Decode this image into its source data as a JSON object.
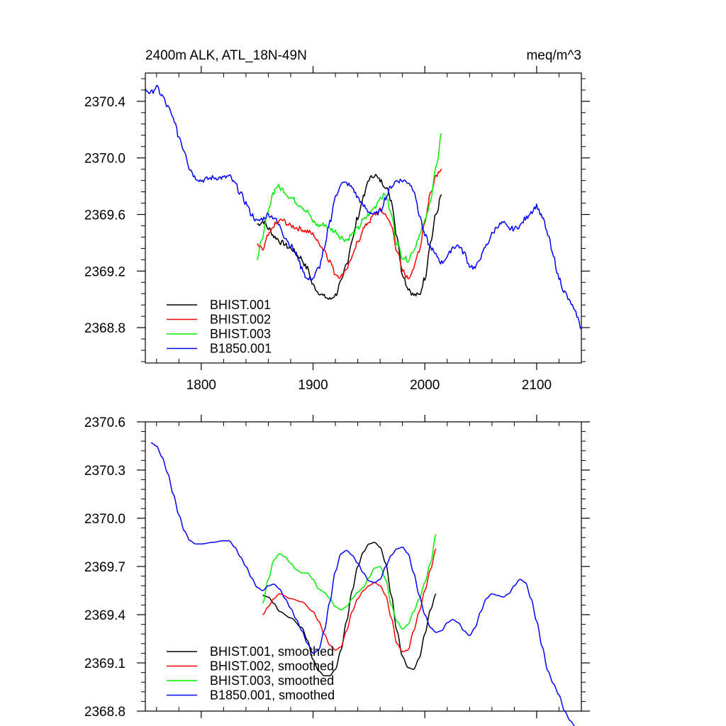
{
  "chart_data": [
    {
      "type": "line",
      "title_left": "2400m ALK, ATL_18N-49N",
      "title_right": "meq/m^3",
      "xlabel": "",
      "ylabel": "",
      "xlim": [
        1750,
        2140
      ],
      "ylim": [
        2368.55,
        2370.6
      ],
      "xticks": [
        1800,
        1900,
        2000,
        2100
      ],
      "xtick_labels": [
        "1800",
        "1900",
        "2000",
        "2100"
      ],
      "yticks": [
        2368.8,
        2369.2,
        2369.6,
        2370.0,
        2370.4
      ],
      "ytick_labels": [
        "2368.8",
        "2369.2",
        "2369.6",
        "2370.0",
        "2370.4"
      ],
      "legend_position": "bottom-left",
      "series": [
        {
          "name": "BHIST.001",
          "color": "#000000",
          "noise": 0.018,
          "x": [
            1850,
            1856,
            1860,
            1866,
            1872,
            1880,
            1888,
            1895,
            1900,
            1905,
            1910,
            1915,
            1920,
            1925,
            1930,
            1935,
            1940,
            1945,
            1950,
            1955,
            1960,
            1965,
            1970,
            1975,
            1980,
            1985,
            1990,
            1995,
            2000,
            2005,
            2010,
            2015
          ],
          "y": [
            2369.53,
            2369.55,
            2369.5,
            2369.44,
            2369.4,
            2369.36,
            2369.3,
            2369.22,
            2369.1,
            2369.05,
            2369.02,
            2369.0,
            2369.03,
            2369.12,
            2369.25,
            2369.42,
            2369.58,
            2369.72,
            2369.85,
            2369.88,
            2369.84,
            2369.8,
            2369.7,
            2369.45,
            2369.18,
            2369.08,
            2369.03,
            2369.03,
            2369.15,
            2369.4,
            2369.6,
            2369.74
          ]
        },
        {
          "name": "BHIST.002",
          "color": "#ff0000",
          "noise": 0.018,
          "x": [
            1850,
            1855,
            1860,
            1866,
            1872,
            1880,
            1888,
            1895,
            1900,
            1905,
            1910,
            1915,
            1920,
            1925,
            1930,
            1935,
            1940,
            1945,
            1950,
            1955,
            1960,
            1965,
            1970,
            1975,
            1980,
            1985,
            1990,
            1995,
            2000,
            2005,
            2010,
            2015
          ],
          "y": [
            2369.38,
            2369.35,
            2369.45,
            2369.53,
            2369.56,
            2369.52,
            2369.5,
            2369.48,
            2369.46,
            2369.4,
            2369.35,
            2369.27,
            2369.18,
            2369.16,
            2369.22,
            2369.3,
            2369.4,
            2369.5,
            2369.55,
            2369.6,
            2369.63,
            2369.6,
            2369.52,
            2369.35,
            2369.2,
            2369.15,
            2369.22,
            2369.35,
            2369.55,
            2369.75,
            2369.88,
            2369.93
          ]
        },
        {
          "name": "BHIST.003",
          "color": "#00ee00",
          "noise": 0.018,
          "x": [
            1850,
            1855,
            1860,
            1864,
            1868,
            1872,
            1880,
            1888,
            1895,
            1900,
            1905,
            1910,
            1915,
            1920,
            1925,
            1930,
            1935,
            1940,
            1945,
            1950,
            1955,
            1960,
            1965,
            1970,
            1975,
            1980,
            1985,
            1990,
            1995,
            2000,
            2005,
            2010,
            2015
          ],
          "y": [
            2369.28,
            2369.45,
            2369.62,
            2369.75,
            2369.8,
            2369.78,
            2369.72,
            2369.67,
            2369.62,
            2369.55,
            2369.52,
            2369.53,
            2369.5,
            2369.48,
            2369.44,
            2369.42,
            2369.46,
            2369.5,
            2369.56,
            2369.6,
            2369.65,
            2369.72,
            2369.74,
            2369.6,
            2369.4,
            2369.3,
            2369.28,
            2369.35,
            2369.45,
            2369.55,
            2369.7,
            2369.92,
            2370.18
          ]
        },
        {
          "name": "B1850.001",
          "color": "#0000ff",
          "noise": 0.018,
          "x": [
            1750,
            1755,
            1760,
            1765,
            1770,
            1775,
            1780,
            1785,
            1790,
            1795,
            1800,
            1805,
            1810,
            1815,
            1820,
            1825,
            1830,
            1835,
            1840,
            1845,
            1850,
            1855,
            1860,
            1865,
            1870,
            1875,
            1880,
            1885,
            1890,
            1895,
            1900,
            1905,
            1910,
            1915,
            1920,
            1925,
            1930,
            1935,
            1940,
            1945,
            1950,
            1955,
            1960,
            1965,
            1970,
            1975,
            1980,
            1985,
            1990,
            1995,
            2000,
            2005,
            2010,
            2015,
            2020,
            2025,
            2030,
            2035,
            2040,
            2045,
            2050,
            2055,
            2060,
            2065,
            2070,
            2075,
            2080,
            2085,
            2090,
            2095,
            2100,
            2105,
            2110,
            2115,
            2120,
            2125,
            2130,
            2135,
            2140
          ],
          "y": [
            2370.48,
            2370.46,
            2370.5,
            2370.44,
            2370.36,
            2370.28,
            2370.15,
            2370.05,
            2369.92,
            2369.86,
            2369.84,
            2369.85,
            2369.86,
            2369.86,
            2369.86,
            2369.87,
            2369.82,
            2369.75,
            2369.68,
            2369.6,
            2369.55,
            2369.57,
            2369.6,
            2369.58,
            2369.52,
            2369.44,
            2369.38,
            2369.32,
            2369.22,
            2369.14,
            2369.15,
            2369.22,
            2369.35,
            2369.55,
            2369.72,
            2369.82,
            2369.82,
            2369.79,
            2369.72,
            2369.66,
            2369.62,
            2369.6,
            2369.62,
            2369.72,
            2369.8,
            2369.84,
            2369.84,
            2369.83,
            2369.78,
            2369.6,
            2369.45,
            2369.37,
            2369.31,
            2369.26,
            2369.3,
            2369.37,
            2369.38,
            2369.33,
            2369.24,
            2369.22,
            2369.3,
            2369.38,
            2369.46,
            2369.52,
            2369.54,
            2369.5,
            2369.5,
            2369.52,
            2369.57,
            2369.62,
            2369.66,
            2369.58,
            2369.46,
            2369.3,
            2369.15,
            2369.05,
            2368.98,
            2368.9,
            2368.8
          ]
        }
      ]
    },
    {
      "type": "line",
      "xlabel": "",
      "ylabel": "",
      "xlim": [
        1750,
        2140
      ],
      "ylim": [
        2368.8,
        2370.6
      ],
      "xticks": [
        1800,
        1900,
        2000,
        2100
      ],
      "yticks": [
        2368.8,
        2369.1,
        2369.4,
        2369.7,
        2370.0,
        2370.3,
        2370.6
      ],
      "ytick_labels": [
        "2368.8",
        "2369.1",
        "2369.4",
        "2369.7",
        "2370.0",
        "2370.3",
        "2370.6"
      ],
      "legend_position": "bottom-left",
      "series": [
        {
          "name": "BHIST.001, smoothed",
          "color": "#000000",
          "x": [
            1855,
            1860,
            1865,
            1870,
            1880,
            1890,
            1895,
            1900,
            1905,
            1910,
            1915,
            1920,
            1925,
            1930,
            1935,
            1940,
            1945,
            1950,
            1955,
            1960,
            1965,
            1970,
            1975,
            1980,
            1985,
            1990,
            1995,
            2000,
            2005,
            2010
          ],
          "y": [
            2369.52,
            2369.51,
            2369.47,
            2369.42,
            2369.38,
            2369.32,
            2369.24,
            2369.12,
            2369.05,
            2369.02,
            2369.02,
            2369.06,
            2369.18,
            2369.36,
            2369.55,
            2369.7,
            2369.79,
            2369.84,
            2369.85,
            2369.82,
            2369.72,
            2369.52,
            2369.3,
            2369.14,
            2369.07,
            2369.06,
            2369.13,
            2369.28,
            2369.43,
            2369.53
          ]
        },
        {
          "name": "BHIST.002, smoothed",
          "color": "#ff0000",
          "x": [
            1855,
            1860,
            1865,
            1870,
            1880,
            1890,
            1900,
            1905,
            1910,
            1915,
            1920,
            1925,
            1930,
            1935,
            1940,
            1945,
            1950,
            1955,
            1960,
            1965,
            1970,
            1975,
            1980,
            1985,
            1990,
            1995,
            2000,
            2005,
            2010
          ],
          "y": [
            2369.4,
            2369.45,
            2369.5,
            2369.53,
            2369.5,
            2369.48,
            2369.42,
            2369.36,
            2369.28,
            2369.21,
            2369.18,
            2369.2,
            2369.3,
            2369.42,
            2369.5,
            2369.55,
            2369.58,
            2369.6,
            2369.58,
            2369.52,
            2369.38,
            2369.22,
            2369.17,
            2369.18,
            2369.3,
            2369.42,
            2369.55,
            2369.68,
            2369.81
          ]
        },
        {
          "name": "BHIST.003, smoothed",
          "color": "#00ee00",
          "x": [
            1855,
            1860,
            1865,
            1870,
            1875,
            1880,
            1885,
            1890,
            1895,
            1900,
            1905,
            1910,
            1915,
            1920,
            1925,
            1930,
            1935,
            1940,
            1945,
            1950,
            1955,
            1960,
            1965,
            1970,
            1975,
            1980,
            1985,
            1990,
            1995,
            2000,
            2005,
            2010
          ],
          "y": [
            2369.47,
            2369.62,
            2369.74,
            2369.78,
            2369.76,
            2369.72,
            2369.68,
            2369.66,
            2369.66,
            2369.62,
            2369.56,
            2369.54,
            2369.5,
            2369.45,
            2369.43,
            2369.45,
            2369.5,
            2369.54,
            2369.57,
            2369.63,
            2369.69,
            2369.7,
            2369.62,
            2369.46,
            2369.36,
            2369.31,
            2369.34,
            2369.42,
            2369.5,
            2369.6,
            2369.72,
            2369.9
          ]
        },
        {
          "name": "B1850.001, smoothed",
          "color": "#0000ff",
          "x": [
            1755,
            1760,
            1765,
            1770,
            1775,
            1780,
            1785,
            1790,
            1795,
            1800,
            1810,
            1820,
            1825,
            1830,
            1835,
            1840,
            1845,
            1850,
            1855,
            1860,
            1865,
            1870,
            1875,
            1880,
            1885,
            1890,
            1895,
            1900,
            1905,
            1910,
            1915,
            1920,
            1925,
            1930,
            1935,
            1940,
            1945,
            1950,
            1955,
            1960,
            1965,
            1970,
            1975,
            1980,
            1985,
            1990,
            1995,
            2000,
            2005,
            2010,
            2015,
            2020,
            2025,
            2030,
            2035,
            2040,
            2045,
            2050,
            2055,
            2060,
            2065,
            2070,
            2075,
            2080,
            2085,
            2090,
            2095,
            2100,
            2105,
            2110,
            2115,
            2120,
            2125,
            2130,
            2135
          ],
          "y": [
            2370.47,
            2370.45,
            2370.38,
            2370.28,
            2370.15,
            2370.02,
            2369.92,
            2369.86,
            2369.84,
            2369.84,
            2369.85,
            2369.86,
            2369.86,
            2369.82,
            2369.76,
            2369.7,
            2369.63,
            2369.57,
            2369.55,
            2369.58,
            2369.59,
            2369.56,
            2369.5,
            2369.44,
            2369.37,
            2369.3,
            2369.22,
            2369.16,
            2369.18,
            2369.3,
            2369.48,
            2369.67,
            2369.78,
            2369.8,
            2369.77,
            2369.72,
            2369.66,
            2369.61,
            2369.6,
            2369.62,
            2369.7,
            2369.77,
            2369.81,
            2369.82,
            2369.78,
            2369.66,
            2369.52,
            2369.4,
            2369.32,
            2369.29,
            2369.3,
            2369.35,
            2369.37,
            2369.35,
            2369.3,
            2369.27,
            2369.32,
            2369.42,
            2369.5,
            2369.53,
            2369.52,
            2369.51,
            2369.53,
            2369.58,
            2369.62,
            2369.6,
            2369.5,
            2369.36,
            2369.2,
            2369.05,
            2368.97,
            2368.9,
            2368.8,
            2368.74,
            2368.7
          ]
        }
      ]
    }
  ]
}
